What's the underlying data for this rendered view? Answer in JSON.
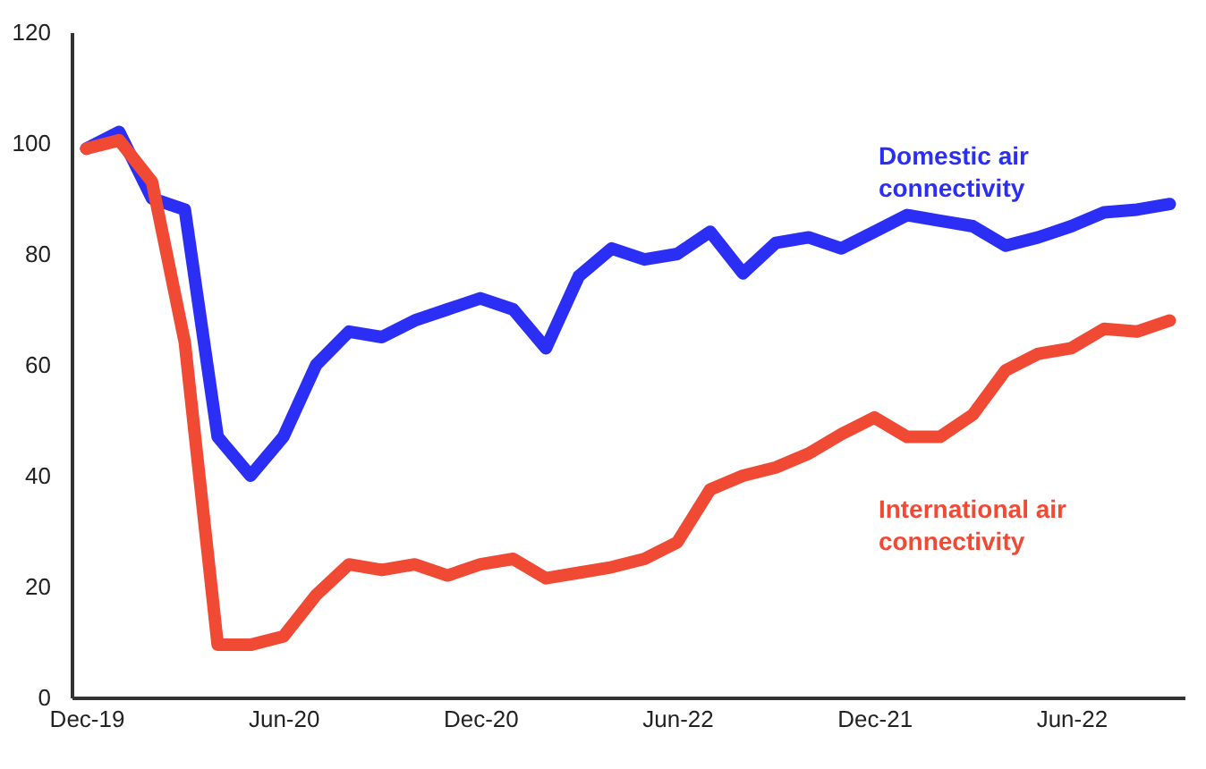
{
  "chart_data": {
    "type": "line",
    "categories": [
      "Dec-19",
      null,
      null,
      null,
      null,
      null,
      "Jun-20",
      null,
      null,
      null,
      null,
      null,
      "Dec-20",
      null,
      null,
      null,
      null,
      null,
      "Jun-22",
      null,
      null,
      null,
      null,
      null,
      "Dec-21",
      null,
      null,
      null,
      null,
      null,
      "Jun-22",
      null,
      null,
      null
    ],
    "series": [
      {
        "name": "Domestic air connectivity",
        "color": "#2b2ef5",
        "values": [
          99,
          102,
          90,
          88,
          47,
          40,
          47,
          60,
          66,
          65,
          68,
          70,
          72,
          70,
          63,
          76,
          81,
          79,
          80,
          84,
          76.5,
          82,
          83,
          81,
          84,
          87,
          86,
          85,
          81.5,
          83,
          85,
          87.5,
          88,
          89
        ]
      },
      {
        "name": "International air connectivity",
        "color": "#f04a35",
        "values": [
          99,
          100.5,
          93,
          64,
          9.5,
          9.5,
          11,
          18.5,
          24,
          23,
          24,
          22,
          24,
          25,
          21.5,
          22.5,
          23.5,
          25,
          28,
          37.5,
          40,
          41.5,
          44,
          47.5,
          50.5,
          47,
          47,
          51,
          59,
          62,
          63,
          66.5,
          66,
          68
        ]
      }
    ],
    "ylim": [
      0,
      120
    ],
    "yticks": [
      0,
      20,
      40,
      60,
      80,
      100,
      120
    ],
    "marker": "none",
    "line_style": "solid"
  }
}
